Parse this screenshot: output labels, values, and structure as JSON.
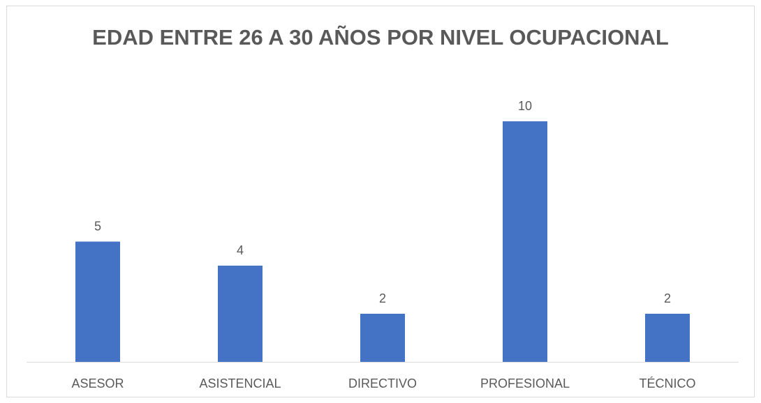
{
  "chart_data": {
    "type": "bar",
    "title": "EDAD ENTRE 26 A 30 AÑOS POR NIVEL OCUPACIONAL",
    "categories": [
      "ASESOR",
      "ASISTENCIAL",
      "DIRECTIVO",
      "PROFESIONAL",
      "TÉCNICO"
    ],
    "values": [
      5,
      4,
      2,
      10,
      2
    ],
    "color": "#4472c4"
  }
}
